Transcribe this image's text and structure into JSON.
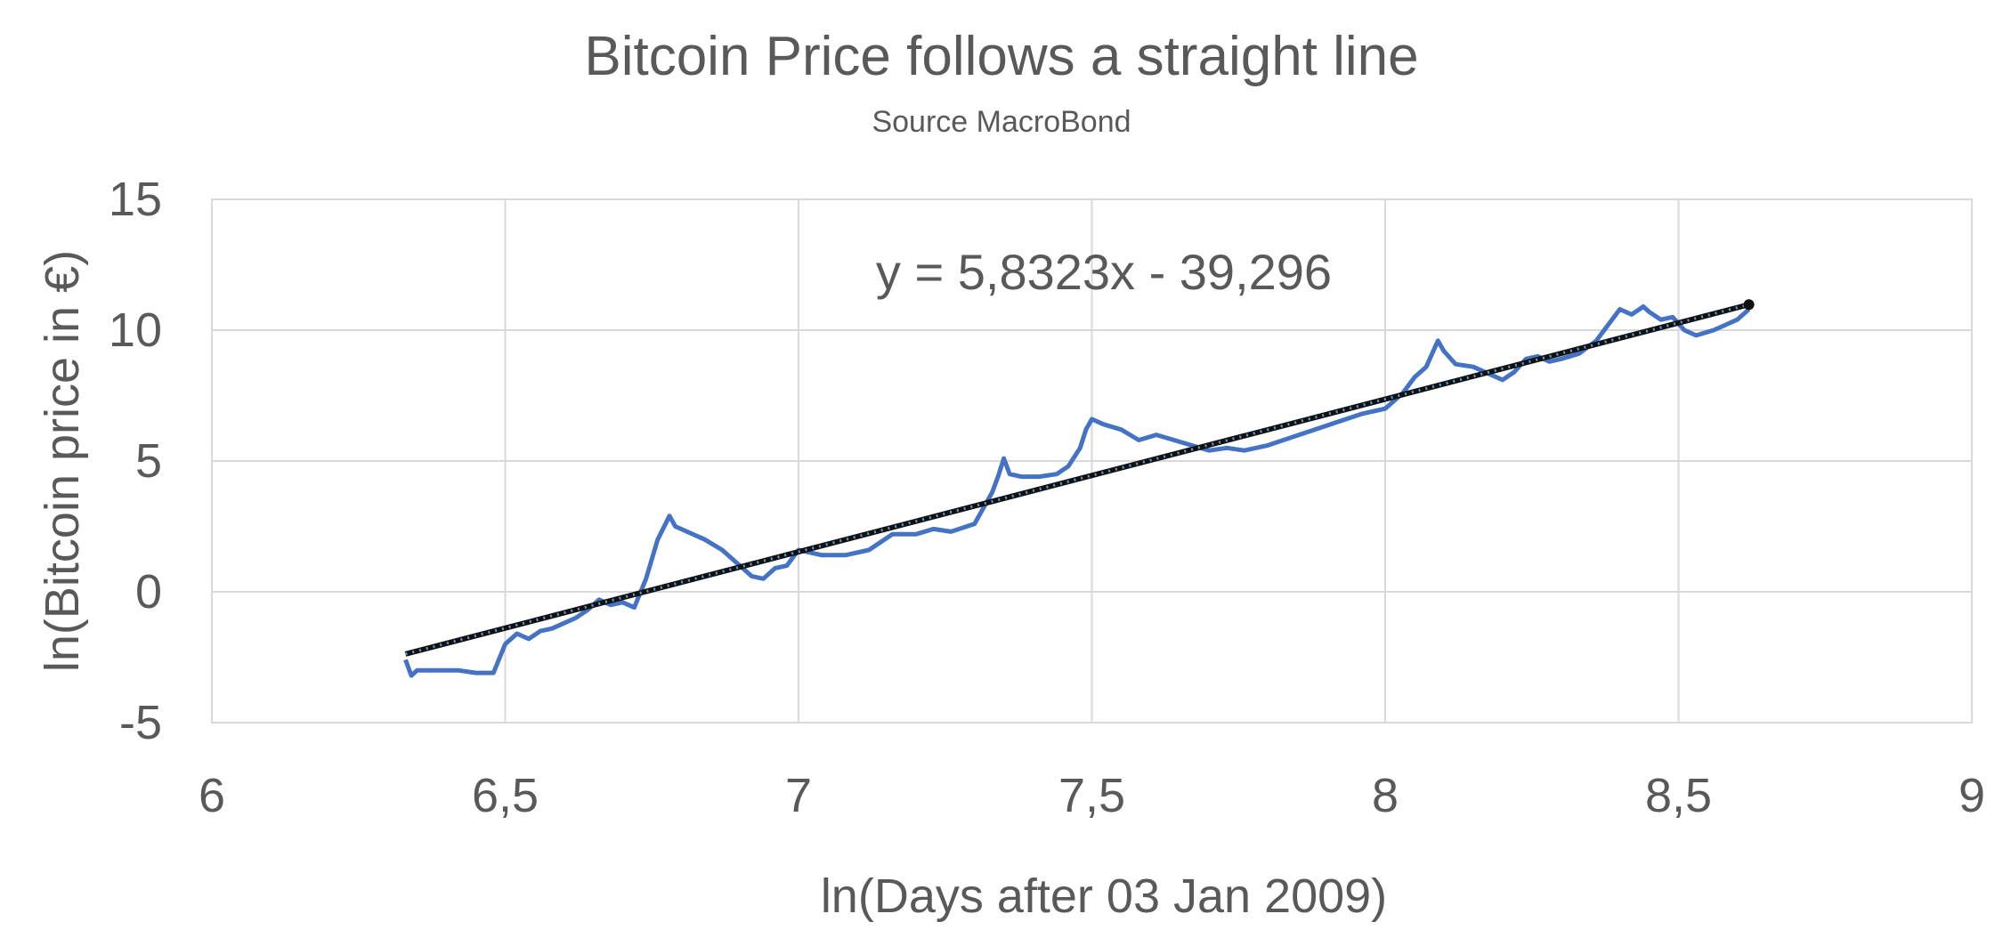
{
  "chart_data": {
    "type": "line",
    "title": "Bitcoin Price follows a straight line",
    "subtitle": "Source MacroBond",
    "xlabel": "ln(Days after 03 Jan 2009)",
    "ylabel": "ln(Bitcoin price in €)",
    "xlim": [
      6,
      9
    ],
    "ylim": [
      -5,
      15
    ],
    "x_ticks": [
      6,
      6.5,
      7,
      7.5,
      8,
      8.5,
      9
    ],
    "x_tick_labels": [
      "6",
      "6,5",
      "7",
      "7,5",
      "8",
      "8,5",
      "9"
    ],
    "y_ticks": [
      -5,
      0,
      5,
      10,
      15
    ],
    "y_tick_labels": [
      "-5",
      "0",
      "5",
      "10",
      "15"
    ],
    "grid": true,
    "trendline_equation": "y = 5,8323x - 39,296",
    "trendline": {
      "slope": 5.8323,
      "intercept": -39.296,
      "x_range": [
        6.33,
        8.62
      ]
    },
    "series": [
      {
        "color": "#4472C4",
        "x": [
          6.33,
          6.34,
          6.35,
          6.38,
          6.42,
          6.45,
          6.48,
          6.5,
          6.52,
          6.54,
          6.56,
          6.58,
          6.6,
          6.62,
          6.64,
          6.66,
          6.68,
          6.7,
          6.72,
          6.74,
          6.76,
          6.78,
          6.79,
          6.81,
          6.84,
          6.87,
          6.9,
          6.92,
          6.94,
          6.96,
          6.98,
          7.0,
          7.04,
          7.08,
          7.12,
          7.16,
          7.2,
          7.23,
          7.26,
          7.3,
          7.33,
          7.34,
          7.35,
          7.36,
          7.38,
          7.41,
          7.44,
          7.46,
          7.48,
          7.49,
          7.5,
          7.52,
          7.55,
          7.58,
          7.61,
          7.64,
          7.67,
          7.7,
          7.73,
          7.76,
          7.8,
          7.84,
          7.88,
          7.92,
          7.96,
          8.0,
          8.03,
          8.05,
          8.07,
          8.08,
          8.09,
          8.1,
          8.12,
          8.15,
          8.18,
          8.2,
          8.22,
          8.24,
          8.26,
          8.28,
          8.3,
          8.33,
          8.36,
          8.38,
          8.4,
          8.42,
          8.44,
          8.45,
          8.47,
          8.49,
          8.51,
          8.53,
          8.56,
          8.58,
          8.6,
          8.62
        ],
        "y": [
          -2.6,
          -3.2,
          -3.0,
          -3.0,
          -3.0,
          -3.1,
          -3.1,
          -2.0,
          -1.6,
          -1.8,
          -1.5,
          -1.4,
          -1.2,
          -1.0,
          -0.7,
          -0.3,
          -0.5,
          -0.4,
          -0.6,
          0.5,
          2.0,
          2.9,
          2.5,
          2.3,
          2.0,
          1.6,
          1.0,
          0.6,
          0.5,
          0.9,
          1.0,
          1.6,
          1.4,
          1.4,
          1.6,
          2.2,
          2.2,
          2.4,
          2.3,
          2.6,
          3.8,
          4.4,
          5.1,
          4.5,
          4.4,
          4.4,
          4.5,
          4.8,
          5.5,
          6.2,
          6.6,
          6.4,
          6.2,
          5.8,
          6.0,
          5.8,
          5.6,
          5.4,
          5.5,
          5.4,
          5.6,
          5.9,
          6.2,
          6.5,
          6.8,
          7.0,
          7.6,
          8.2,
          8.6,
          9.1,
          9.6,
          9.2,
          8.7,
          8.6,
          8.3,
          8.1,
          8.4,
          8.9,
          9.0,
          8.8,
          8.9,
          9.1,
          9.6,
          10.2,
          10.8,
          10.6,
          10.9,
          10.7,
          10.4,
          10.5,
          10.0,
          9.8,
          10.0,
          10.2,
          10.4,
          10.8
        ]
      }
    ]
  }
}
